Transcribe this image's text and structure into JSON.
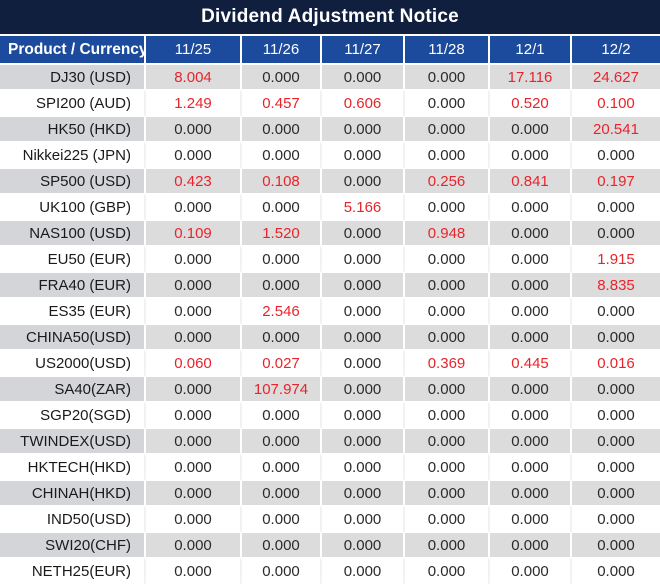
{
  "title": "Dividend Adjustment Notice",
  "colors": {
    "title_bg": "#0f1f3d",
    "header_bg": "#1c4b9d",
    "header_text": "#ffffff",
    "row_stripe_bg": "#dcdcdd",
    "row_stripe_product_bg": "#d3d5d9",
    "value_text": "#2b2b2b",
    "nonzero_value_text": "#e8242b"
  },
  "table": {
    "columns": [
      "Product / Currency",
      "11/25",
      "11/26",
      "11/27",
      "11/28",
      "12/1",
      "12/2"
    ],
    "rows": [
      {
        "product": "DJ30 (USD)",
        "values": [
          "8.004",
          "0.000",
          "0.000",
          "0.000",
          "17.116",
          "24.627"
        ]
      },
      {
        "product": "SPI200 (AUD)",
        "values": [
          "1.249",
          "0.457",
          "0.606",
          "0.000",
          "0.520",
          "0.100"
        ]
      },
      {
        "product": "HK50 (HKD)",
        "values": [
          "0.000",
          "0.000",
          "0.000",
          "0.000",
          "0.000",
          "20.541"
        ]
      },
      {
        "product": "Nikkei225 (JPN)",
        "values": [
          "0.000",
          "0.000",
          "0.000",
          "0.000",
          "0.000",
          "0.000"
        ]
      },
      {
        "product": "SP500 (USD)",
        "values": [
          "0.423",
          "0.108",
          "0.000",
          "0.256",
          "0.841",
          "0.197"
        ]
      },
      {
        "product": "UK100 (GBP)",
        "values": [
          "0.000",
          "0.000",
          "5.166",
          "0.000",
          "0.000",
          "0.000"
        ]
      },
      {
        "product": "NAS100 (USD)",
        "values": [
          "0.109",
          "1.520",
          "0.000",
          "0.948",
          "0.000",
          "0.000"
        ]
      },
      {
        "product": "EU50 (EUR)",
        "values": [
          "0.000",
          "0.000",
          "0.000",
          "0.000",
          "0.000",
          "1.915"
        ]
      },
      {
        "product": "FRA40 (EUR)",
        "values": [
          "0.000",
          "0.000",
          "0.000",
          "0.000",
          "0.000",
          "8.835"
        ]
      },
      {
        "product": "ES35 (EUR)",
        "values": [
          "0.000",
          "2.546",
          "0.000",
          "0.000",
          "0.000",
          "0.000"
        ]
      },
      {
        "product": "CHINA50(USD)",
        "values": [
          "0.000",
          "0.000",
          "0.000",
          "0.000",
          "0.000",
          "0.000"
        ]
      },
      {
        "product": "US2000(USD)",
        "values": [
          "0.060",
          "0.027",
          "0.000",
          "0.369",
          "0.445",
          "0.016"
        ]
      },
      {
        "product": "SA40(ZAR)",
        "values": [
          "0.000",
          "107.974",
          "0.000",
          "0.000",
          "0.000",
          "0.000"
        ]
      },
      {
        "product": "SGP20(SGD)",
        "values": [
          "0.000",
          "0.000",
          "0.000",
          "0.000",
          "0.000",
          "0.000"
        ]
      },
      {
        "product": "TWINDEX(USD)",
        "values": [
          "0.000",
          "0.000",
          "0.000",
          "0.000",
          "0.000",
          "0.000"
        ]
      },
      {
        "product": "HKTECH(HKD)",
        "values": [
          "0.000",
          "0.000",
          "0.000",
          "0.000",
          "0.000",
          "0.000"
        ]
      },
      {
        "product": "CHINAH(HKD)",
        "values": [
          "0.000",
          "0.000",
          "0.000",
          "0.000",
          "0.000",
          "0.000"
        ]
      },
      {
        "product": "IND50(USD)",
        "values": [
          "0.000",
          "0.000",
          "0.000",
          "0.000",
          "0.000",
          "0.000"
        ]
      },
      {
        "product": "SWI20(CHF)",
        "values": [
          "0.000",
          "0.000",
          "0.000",
          "0.000",
          "0.000",
          "0.000"
        ]
      },
      {
        "product": "NETH25(EUR)",
        "values": [
          "0.000",
          "0.000",
          "0.000",
          "0.000",
          "0.000",
          "0.000"
        ]
      }
    ]
  }
}
